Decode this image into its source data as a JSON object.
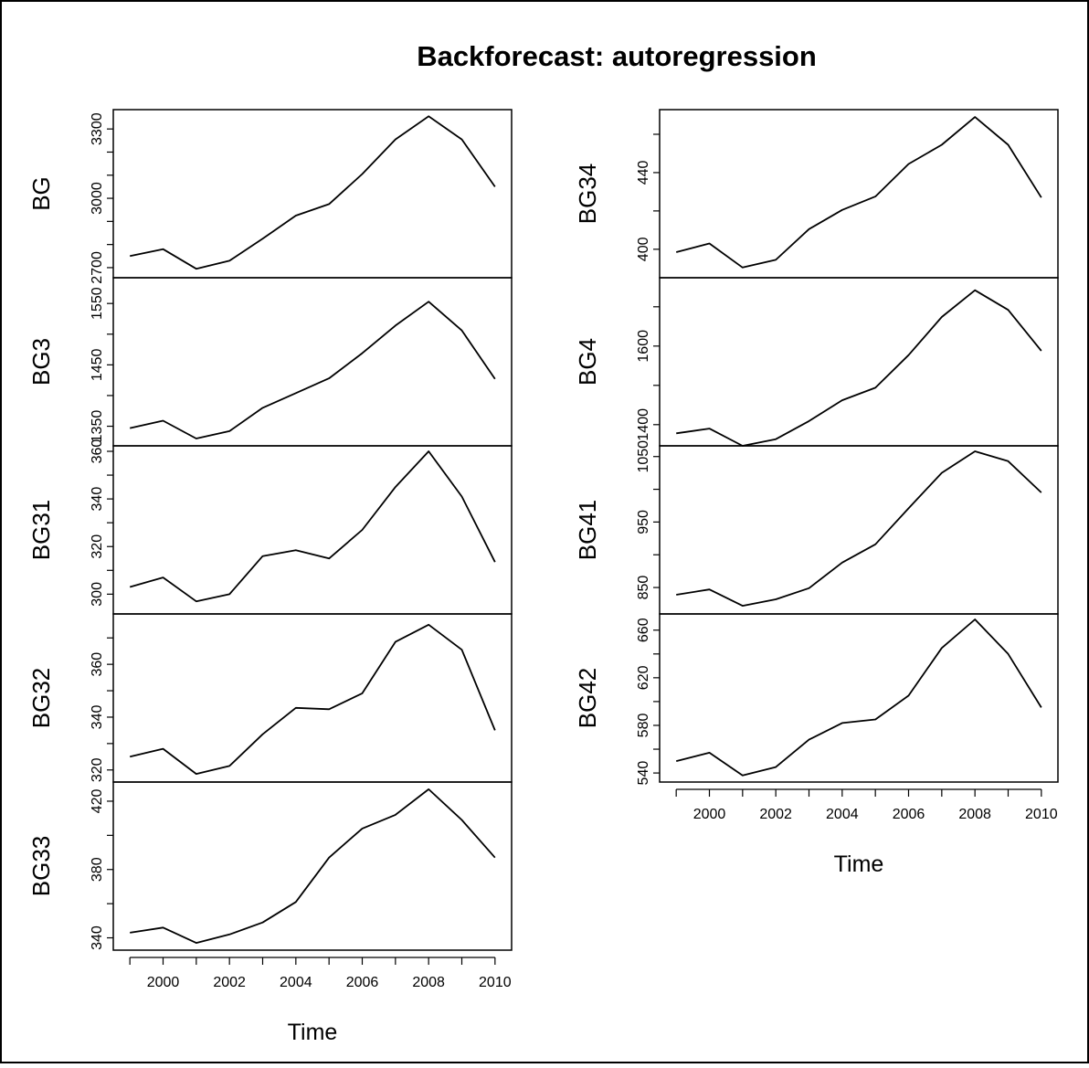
{
  "title": "Backforecast: autoregression",
  "colors": {
    "line": "#000000",
    "background": "#ffffff"
  },
  "chart_data": [
    {
      "type": "line",
      "title": "Backforecast: autoregression",
      "layout": "multi-panel stacked time series, two columns",
      "xlabel": "Time",
      "x": [
        1999,
        2000,
        2001,
        2002,
        2003,
        2004,
        2005,
        2006,
        2007,
        2008,
        2009,
        2010
      ],
      "xticks": [
        "2000",
        "2002",
        "2004",
        "2006",
        "2008",
        "2010"
      ],
      "xlim": [
        1998.5,
        2010.5
      ],
      "columns": [
        {
          "panels": [
            {
              "name": "BG",
              "ylabel": "BG",
              "ylim": [
                2680,
                3360
              ],
              "yticks": [
                "2700",
                "3000",
                "3300"
              ],
              "minor_ticks": [
                2800,
                2900,
                3100,
                3200
              ],
              "values": [
                2750,
                2780,
                2695,
                2730,
                2825,
                2925,
                2975,
                3105,
                3255,
                3355,
                3255,
                3050
              ]
            },
            {
              "name": "BG3",
              "ylabel": "BG3",
              "ylim": [
                1327,
                1583
              ],
              "yticks": [
                "1350",
                "1450",
                "1550"
              ],
              "minor_ticks": [
                1400,
                1500
              ],
              "values": [
                1347,
                1359,
                1330,
                1342,
                1380,
                1404,
                1428,
                1469,
                1514,
                1553,
                1506,
                1427
              ]
            },
            {
              "name": "BG31",
              "ylabel": "BG31",
              "ylim": [
                294,
                360
              ],
              "yticks": [
                "300",
                "320",
                "340",
                "360"
              ],
              "minor_ticks": [
                310,
                330,
                350
              ],
              "values": [
                303,
                307,
                297,
                300,
                316,
                318.5,
                315,
                327,
                345,
                360,
                341,
                313.5
              ]
            },
            {
              "name": "BG32",
              "ylabel": "BG32",
              "ylim": [
                317.5,
                377
              ],
              "yticks": [
                "320",
                "340",
                "360"
              ],
              "minor_ticks": [
                330,
                350,
                370
              ],
              "values": [
                325,
                328,
                318.5,
                321.5,
                333.5,
                343.5,
                343,
                349,
                368.5,
                375,
                365.5,
                335
              ]
            },
            {
              "name": "BG33",
              "ylabel": "BG33",
              "ylim": [
                336,
                428
              ],
              "yticks": [
                "340",
                "380",
                "420"
              ],
              "minor_ticks": [
                360,
                400
              ],
              "values": [
                343,
                346,
                337,
                342,
                349,
                361,
                387,
                404,
                412,
                427,
                409,
                387
              ]
            }
          ]
        },
        {
          "panels": [
            {
              "name": "BG34",
              "ylabel": "BG34",
              "ylim": [
                388,
                470
              ],
              "yticks": [
                "400",
                "440"
              ],
              "minor_ticks": [
                420,
                460
              ],
              "values": [
                398.5,
                403,
                390.5,
                394.5,
                410.5,
                420.5,
                427.5,
                444.5,
                454.5,
                469,
                454.5,
                427
              ]
            },
            {
              "name": "BG4",
              "ylabel": "BG4",
              "ylim": [
                1360,
                1760
              ],
              "yticks": [
                "1400",
                "1600"
              ],
              "minor_ticks": [
                1500,
                1700
              ],
              "values": [
                1378,
                1390,
                1346,
                1363,
                1409,
                1462,
                1494,
                1577,
                1674,
                1742,
                1692,
                1588
              ]
            },
            {
              "name": "BG41",
              "ylabel": "BG41",
              "ylim": [
                818,
                1058
              ],
              "yticks": [
                "850",
                "950",
                "1050"
              ],
              "minor_ticks": [
                900,
                1000
              ],
              "values": [
                839,
                847,
                822,
                832,
                849,
                888,
                916,
                971,
                1025,
                1058,
                1043,
                995
              ]
            },
            {
              "name": "BG42",
              "ylabel": "BG42",
              "ylim": [
                537,
                669
              ],
              "yticks": [
                "540",
                "580",
                "620",
                "660"
              ],
              "minor_ticks": [
                560,
                600,
                640
              ],
              "values": [
                550,
                557,
                538,
                545,
                568,
                582,
                585,
                605,
                645,
                669,
                640,
                595
              ]
            }
          ]
        }
      ]
    }
  ]
}
